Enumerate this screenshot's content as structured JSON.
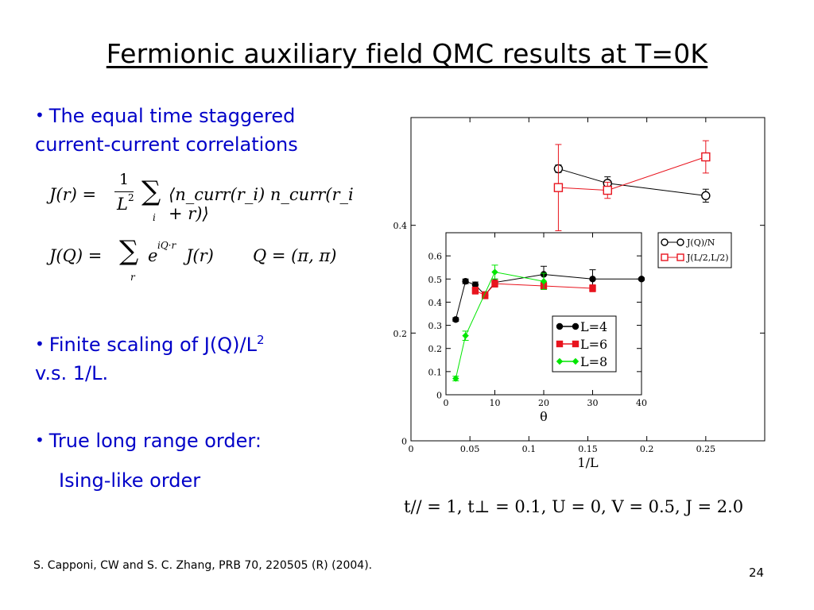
{
  "slide": {
    "title": "Fermionic auxiliary field QMC results at T=0K",
    "bullet1_line1": "The equal time staggered",
    "bullet1_line2": "current-current correlations",
    "bullet2_line1": "Finite scaling of J(Q)/L",
    "bullet2_sup": "2",
    "bullet2_line2": "v.s. 1/L.",
    "bullet3": "True long range order:",
    "bullet3_sub": "Ising-like order",
    "bullet_symbol": "•",
    "eq1_lhs": "J(r) =",
    "eq1_frac_num": "1",
    "eq1_frac_den": "L",
    "eq1_frac_den_sup": "2",
    "eq1_sum": "∑",
    "eq1_sum_idx": "i",
    "eq1_body": "⟨n_curr(r_i) n_curr(r_i + r)⟩",
    "eq2_lhs": "J(Q) =",
    "eq2_sum": "∑",
    "eq2_sum_idx": "r",
    "eq2_exp_base": "e",
    "eq2_exp": "iQ·r",
    "eq2_rhs": "J(r)",
    "eq2_q": "Q = (π, π)",
    "params": "t// = 1, t⊥ = 0.1, U = 0, V = 0.5, J = 2.0",
    "reference": "S. Capponi, CW and S. C. Zhang,  PRB 70, 220505 (R) (2004).",
    "page_number": "24"
  },
  "chart_data": [
    {
      "type": "line",
      "xlabel": "1/L",
      "ylabel": "",
      "xlim": [
        0,
        0.3
      ],
      "ylim": [
        0,
        0.6
      ],
      "xticks": [
        "0",
        "0.05",
        "0.1",
        "0.15",
        "0.2",
        "0.25"
      ],
      "yticks": [
        "0",
        "0.2",
        "0.4"
      ],
      "legend_position": "top-right",
      "series": [
        {
          "name": "J(Q)/N",
          "color": "#000000",
          "marker": "circle-open",
          "points": [
            {
              "x": 0.125,
              "y": 0.505,
              "err": 0.007
            },
            {
              "x": 0.1667,
              "y": 0.478,
              "err": 0.012
            },
            {
              "x": 0.25,
              "y": 0.455,
              "err": 0.012
            }
          ]
        },
        {
          "name": "J(L/2,L/2)",
          "color": "#e8141e",
          "marker": "square-open",
          "points": [
            {
              "x": 0.125,
              "y": 0.47,
              "err": 0.08
            },
            {
              "x": 0.1667,
              "y": 0.465,
              "err": 0.015
            },
            {
              "x": 0.25,
              "y": 0.527,
              "err": 0.03
            }
          ]
        }
      ]
    },
    {
      "type": "line",
      "xlabel": "θ",
      "ylabel": "",
      "xlim": [
        0,
        40
      ],
      "ylim": [
        0,
        0.7
      ],
      "xticks": [
        "0",
        "10",
        "20",
        "30",
        "40"
      ],
      "yticks": [
        "0",
        "0.1",
        "0.2",
        "0.3",
        "0.4",
        "0.5",
        "0.6"
      ],
      "legend_position": "bottom-right",
      "series": [
        {
          "name": "L=4",
          "color": "#000000",
          "marker": "circle-filled",
          "points": [
            {
              "x": 2,
              "y": 0.325,
              "err": 0.008
            },
            {
              "x": 4,
              "y": 0.49,
              "err": 0.01
            },
            {
              "x": 6,
              "y": 0.475,
              "err": 0.012
            },
            {
              "x": 8,
              "y": 0.43,
              "err": 0.015
            },
            {
              "x": 10,
              "y": 0.485,
              "err": 0.015
            },
            {
              "x": 20,
              "y": 0.52,
              "err": 0.035
            },
            {
              "x": 30,
              "y": 0.5,
              "err": 0.04
            },
            {
              "x": 40,
              "y": 0.5,
              "err": 0.005
            }
          ]
        },
        {
          "name": "L=6",
          "color": "#e8141e",
          "marker": "square-filled",
          "points": [
            {
              "x": 6,
              "y": 0.45,
              "err": 0.015
            },
            {
              "x": 8,
              "y": 0.43,
              "err": 0.015
            },
            {
              "x": 10,
              "y": 0.48,
              "err": 0.015
            },
            {
              "x": 20,
              "y": 0.47,
              "err": 0.015
            },
            {
              "x": 30,
              "y": 0.46,
              "err": 0.015
            }
          ]
        },
        {
          "name": "L=8",
          "color": "#00e600",
          "marker": "diamond-filled",
          "points": [
            {
              "x": 2,
              "y": 0.07,
              "err": 0.01
            },
            {
              "x": 4,
              "y": 0.255,
              "err": 0.02
            },
            {
              "x": 10,
              "y": 0.53,
              "err": 0.03
            },
            {
              "x": 20,
              "y": 0.49,
              "err": 0.035
            }
          ]
        }
      ]
    }
  ]
}
